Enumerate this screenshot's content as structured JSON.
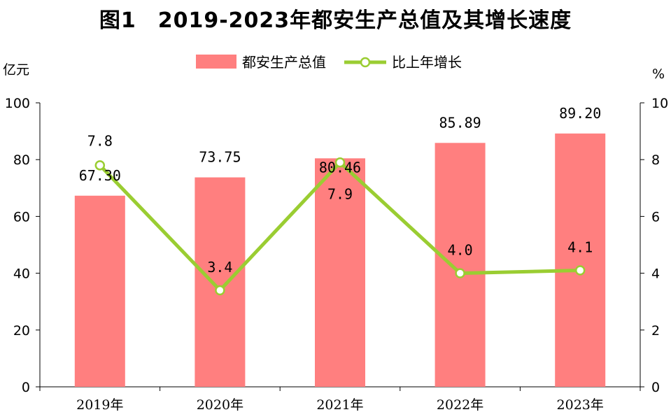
{
  "title": "图1　2019-2023年都安生产总值及其增长速度",
  "chart_data": {
    "type": "bar+line",
    "categories": [
      "2019年",
      "2020年",
      "2021年",
      "2022年",
      "2023年"
    ],
    "series": [
      {
        "name": "都安生产总值",
        "type": "bar",
        "axis": "left",
        "values": [
          67.3,
          73.75,
          80.46,
          85.89,
          89.2
        ],
        "labels": [
          "67.30",
          "73.75",
          "80.46",
          "85.89",
          "89.20"
        ],
        "color": "#FF7F7F"
      },
      {
        "name": "比上年增长",
        "type": "line",
        "axis": "right",
        "values": [
          7.8,
          3.4,
          7.9,
          4.0,
          4.1
        ],
        "labels": [
          "7.8",
          "3.4",
          "7.9",
          "4.0",
          "4.1"
        ],
        "color": "#9ACD32"
      }
    ],
    "left_axis": {
      "unit": "亿元",
      "range": [
        0,
        100
      ],
      "ticks": [
        "0",
        "20",
        "40",
        "60",
        "80",
        "100"
      ]
    },
    "right_axis": {
      "unit": "%",
      "range": [
        0,
        10
      ],
      "ticks": [
        "0",
        "2",
        "4",
        "6",
        "8",
        "10"
      ]
    },
    "legend_position": "top-center",
    "grid": false
  }
}
